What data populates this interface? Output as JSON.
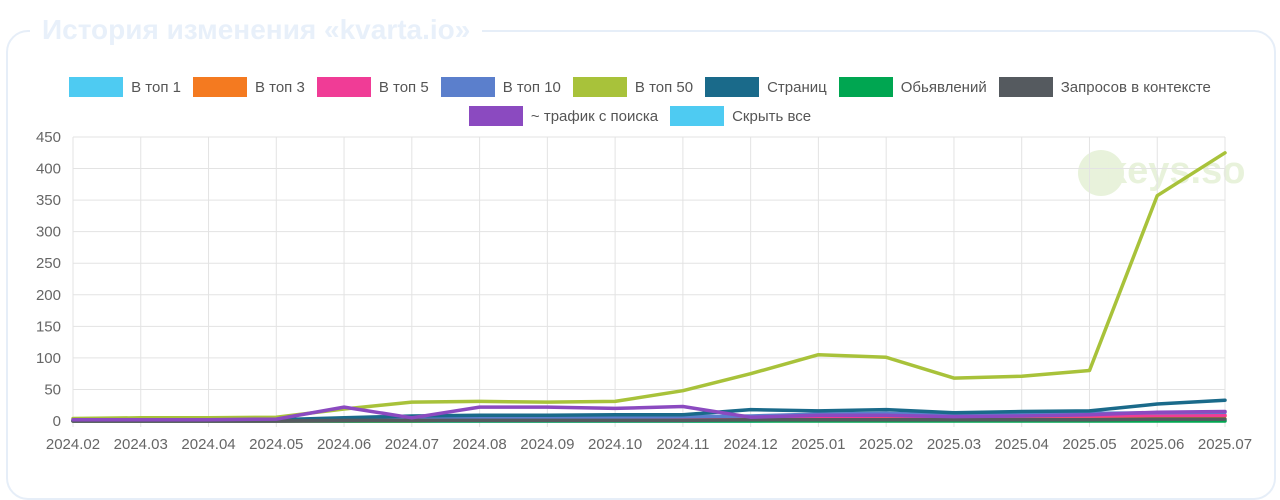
{
  "panel": {
    "title": "История изменения «kvarta.io»"
  },
  "watermark": {
    "text": "keys.so"
  },
  "legend": [
    {
      "label": "В топ 1",
      "color": "#4ecbf2"
    },
    {
      "label": "В топ 3",
      "color": "#f47a20"
    },
    {
      "label": "В топ 5",
      "color": "#f03c96"
    },
    {
      "label": "В топ 10",
      "color": "#5b7fcc"
    },
    {
      "label": "В топ 50",
      "color": "#a8c23a"
    },
    {
      "label": "Страниц",
      "color": "#1a6a8a"
    },
    {
      "label": "Обьявлений",
      "color": "#00a651"
    },
    {
      "label": "Запросов в контексте",
      "color": "#555a5f"
    },
    {
      "label": "~ трафик с поиска",
      "color": "#8b4ac0"
    },
    {
      "label": "Скрыть все",
      "color": "#4ecbf2"
    }
  ],
  "chart_data": {
    "type": "line",
    "categories": [
      "2024.02",
      "2024.03",
      "2024.04",
      "2024.05",
      "2024.06",
      "2024.07",
      "2024.08",
      "2024.09",
      "2024.10",
      "2024.11",
      "2024.12",
      "2025.01",
      "2025.02",
      "2025.03",
      "2025.04",
      "2025.05",
      "2025.06",
      "2025.07"
    ],
    "yticks": [
      0,
      50,
      100,
      150,
      200,
      250,
      300,
      350,
      400,
      450
    ],
    "ylim": [
      0,
      450
    ],
    "grid": true,
    "legend_position": "top",
    "series": [
      {
        "name": "В топ 1",
        "color": "#4ecbf2",
        "values": [
          0,
          0,
          0,
          0,
          0,
          0,
          0,
          0,
          0,
          0,
          0,
          1,
          1,
          1,
          1,
          1,
          1,
          1
        ]
      },
      {
        "name": "В топ 3",
        "color": "#f47a20",
        "values": [
          0,
          0,
          0,
          0,
          0,
          0,
          1,
          1,
          1,
          1,
          2,
          5,
          6,
          5,
          5,
          6,
          7,
          8
        ]
      },
      {
        "name": "В топ 5",
        "color": "#f03c96",
        "values": [
          0,
          0,
          0,
          0,
          0,
          1,
          1,
          1,
          2,
          2,
          3,
          7,
          8,
          7,
          8,
          8,
          9,
          9
        ]
      },
      {
        "name": "В топ 10",
        "color": "#5b7fcc",
        "values": [
          1,
          1,
          1,
          2,
          4,
          5,
          6,
          6,
          6,
          7,
          8,
          11,
          12,
          10,
          11,
          12,
          13,
          14
        ]
      },
      {
        "name": "В топ 50",
        "color": "#a8c23a",
        "values": [
          4,
          5,
          5,
          6,
          19,
          30,
          31,
          30,
          31,
          48,
          75,
          105,
          101,
          68,
          71,
          80,
          357,
          425
        ]
      },
      {
        "name": "Страниц",
        "color": "#1a6a8a",
        "values": [
          1,
          1,
          1,
          2,
          5,
          8,
          9,
          9,
          10,
          10,
          18,
          16,
          18,
          13,
          15,
          16,
          27,
          33
        ]
      },
      {
        "name": "Обьявлений",
        "color": "#00a651",
        "values": [
          0,
          0,
          0,
          0,
          0,
          0,
          0,
          0,
          0,
          0,
          0,
          0,
          0,
          0,
          0,
          0,
          0,
          0
        ]
      },
      {
        "name": "Запросов в контексте",
        "color": "#555a5f",
        "values": [
          0,
          0,
          0,
          0,
          1,
          1,
          1,
          1,
          1,
          1,
          2,
          2,
          2,
          2,
          2,
          2,
          3,
          3
        ]
      },
      {
        "name": "~ трафик с поиска",
        "color": "#8b4ac0",
        "values": [
          2,
          2,
          2,
          3,
          22,
          5,
          22,
          22,
          20,
          23,
          6,
          9,
          9,
          7,
          8,
          10,
          14,
          15
        ]
      }
    ]
  }
}
